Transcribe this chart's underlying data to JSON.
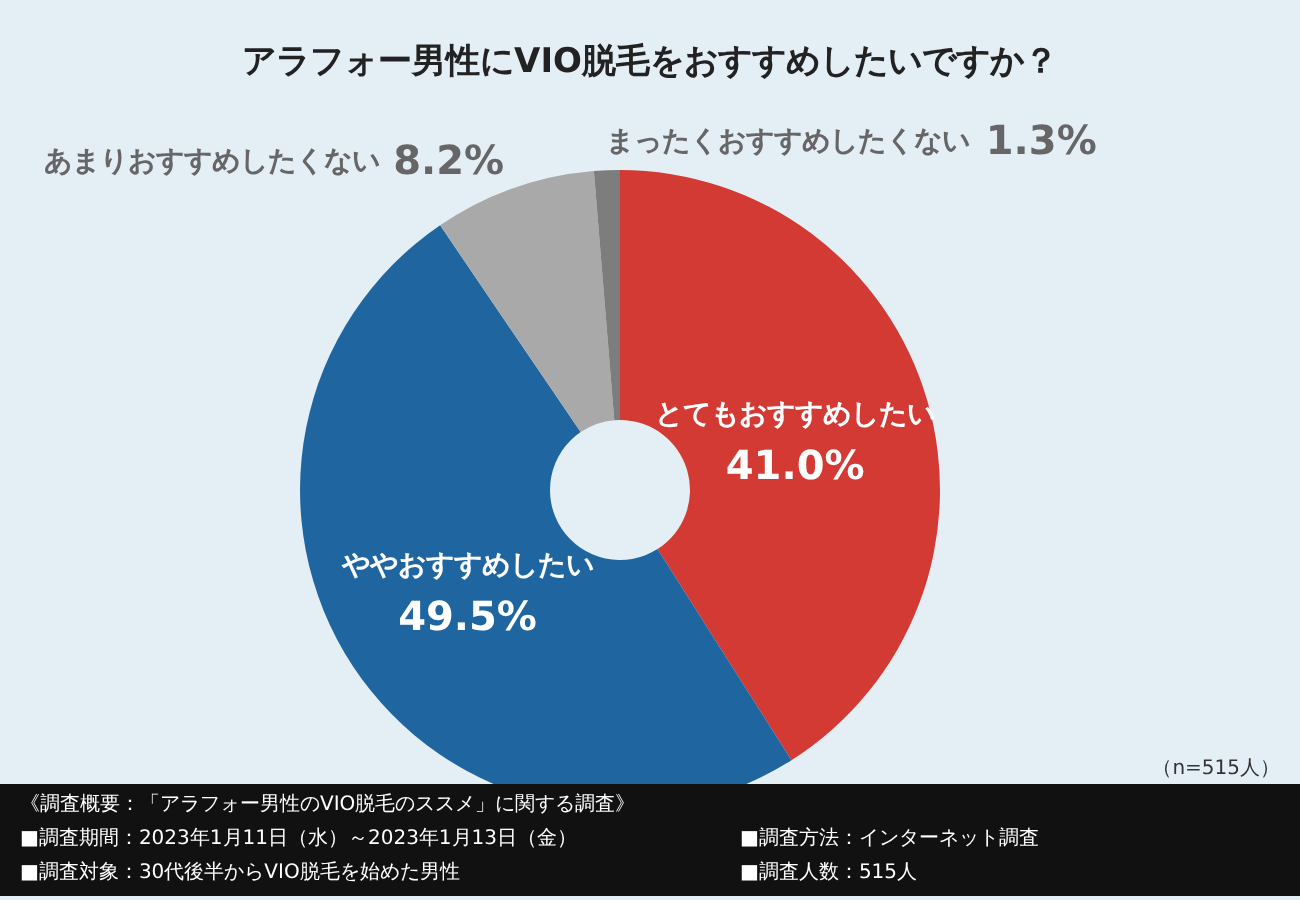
{
  "chart_data": {
    "type": "donut",
    "title": "アラフォー男性にVIO脱毛をおすすめしたいですか？",
    "categories": [
      "とてもおすすめしたい",
      "ややおすすめしたい",
      "あまりおすすめしたくない",
      "まったくおすすめしたくない"
    ],
    "values": [
      41.0,
      49.5,
      8.2,
      1.3
    ],
    "colors": [
      "#d33a33",
      "#1f65a0",
      "#a9a9a9",
      "#7d7d7d"
    ],
    "value_labels": [
      "41.0%",
      "49.5%",
      "8.2%",
      "1.3%"
    ],
    "legend": false,
    "annotations": [
      "（n=515人）",
      "《調査概要：「アラフォー男性のVIO脱毛のススメ」に関する調査》",
      "■調査期間：2023年1月11日（水）～2023年1月13日（金）",
      "■調査方法：インターネット調査",
      "■調査対象：30代後半からVIO脱毛を始めた男性",
      "■調査人数：515人"
    ]
  }
}
